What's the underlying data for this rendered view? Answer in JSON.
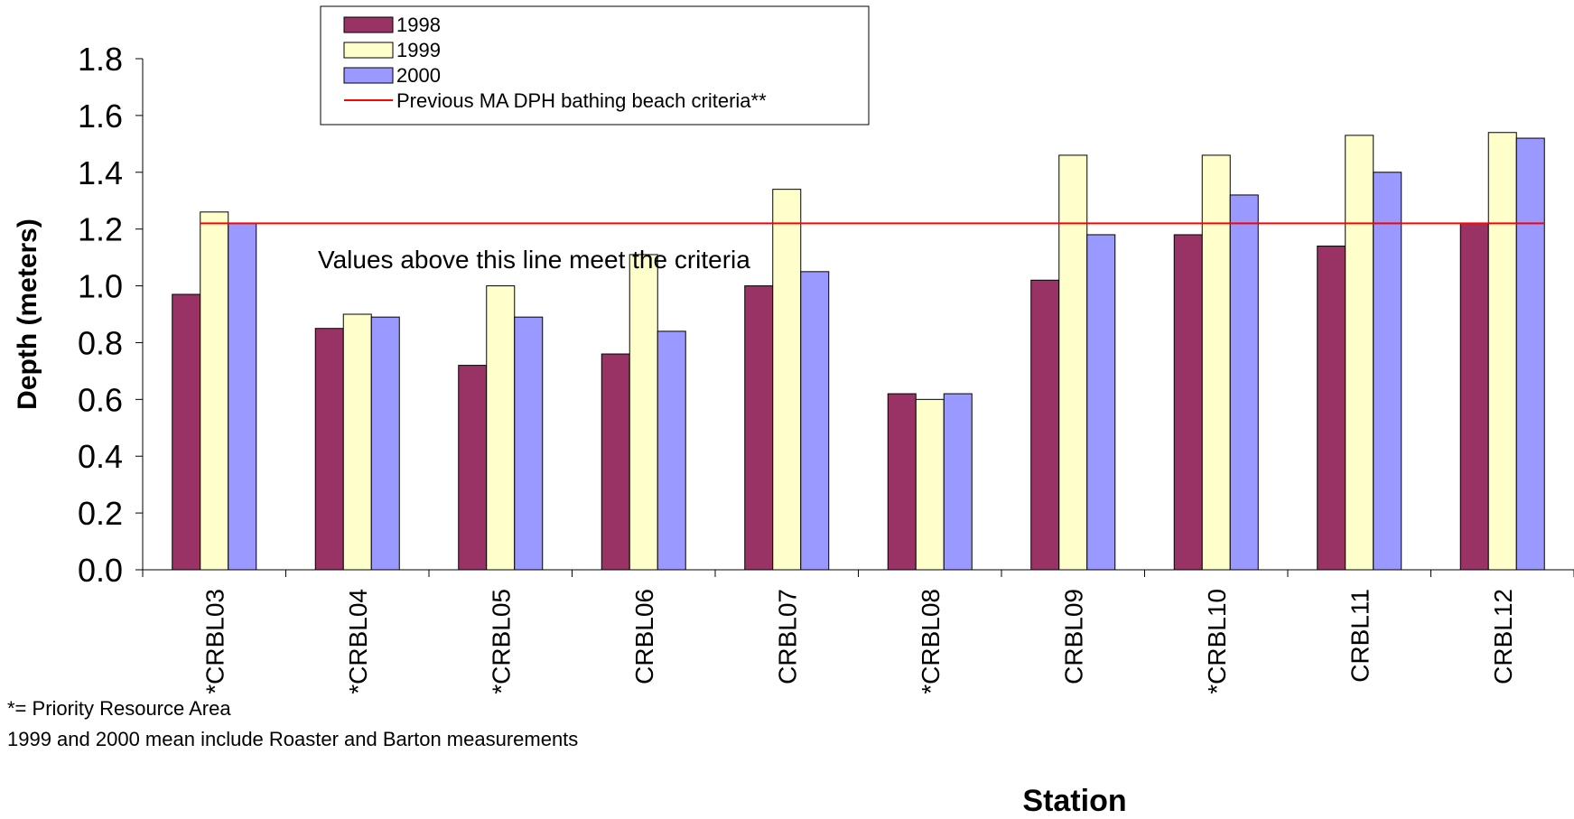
{
  "chart_data": {
    "type": "bar",
    "ylabel": "Depth (meters)",
    "xlabel": "Station",
    "ylim": [
      0,
      1.8
    ],
    "yticks": [
      "0.0",
      "0.2",
      "0.4",
      "0.6",
      "0.8",
      "1.0",
      "1.2",
      "1.4",
      "1.6",
      "1.8"
    ],
    "categories": [
      "*CRBL03",
      "*CRBL04",
      "*CRBL05",
      "CRBL06",
      "CRBL07",
      "*CRBL08",
      "CRBL09",
      "*CRBL10",
      "CRBL11",
      "CRBL12"
    ],
    "series": [
      {
        "name": "1998",
        "color": "#993366",
        "values": [
          0.97,
          0.85,
          0.72,
          0.76,
          1.0,
          0.62,
          1.02,
          1.18,
          1.14,
          1.22
        ]
      },
      {
        "name": "1999",
        "color": "#FFFFCC",
        "values": [
          1.26,
          0.9,
          1.0,
          1.11,
          1.34,
          0.6,
          1.46,
          1.46,
          1.53,
          1.54
        ]
      },
      {
        "name": "2000",
        "color": "#9999FF",
        "values": [
          1.22,
          0.89,
          0.89,
          0.84,
          1.05,
          0.62,
          1.18,
          1.32,
          1.4,
          1.52
        ]
      }
    ],
    "reference_line": {
      "name": "Previous MA DPH bathing beach criteria**",
      "value": 1.22,
      "color": "#FF0000"
    },
    "annotation": "Values above this line meet the criteria",
    "legend_position": "top-center",
    "grid": false
  },
  "footnotes": [
    "*= Priority Resource Area",
    "1999 and 2000 mean include Roaster and Barton measurements"
  ]
}
